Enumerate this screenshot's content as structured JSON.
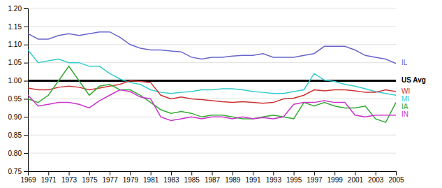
{
  "chart_data": {
    "type": "line",
    "x": [
      1969,
      1970,
      1971,
      1972,
      1973,
      1974,
      1975,
      1976,
      1977,
      1978,
      1979,
      1980,
      1981,
      1982,
      1983,
      1984,
      1985,
      1986,
      1987,
      1988,
      1989,
      1990,
      1991,
      1992,
      1993,
      1994,
      1995,
      1996,
      1997,
      1998,
      1999,
      2000,
      2001,
      2002,
      2003,
      2004,
      2005
    ],
    "xlim": [
      1969,
      2005
    ],
    "xticks": [
      1969,
      1971,
      1973,
      1975,
      1977,
      1979,
      1981,
      1983,
      1985,
      1987,
      1989,
      1991,
      1993,
      1995,
      1997,
      1999,
      2001,
      2003,
      2005
    ],
    "ylim": [
      0.75,
      1.2
    ],
    "yticks": [
      0.75,
      {
        "value": 0.8,
        "label": "0.80"
      },
      0.85,
      {
        "value": 0.9,
        "label": "0.90"
      },
      0.95,
      {
        "value": 1.0,
        "label": "1.00"
      },
      1.05,
      {
        "value": 1.1,
        "label": "1.10"
      },
      1.15,
      {
        "value": 1.2,
        "label": "1.20"
      }
    ],
    "grid": true,
    "series": [
      {
        "name": "US Avg",
        "color": "#000000",
        "type": "hline",
        "value": 1.0
      },
      {
        "name": "IL",
        "color": "#6666cc",
        "values": [
          1.13,
          1.115,
          1.115,
          1.125,
          1.13,
          1.125,
          1.13,
          1.135,
          1.135,
          1.12,
          1.1,
          1.09,
          1.085,
          1.085,
          1.082,
          1.08,
          1.065,
          1.06,
          1.065,
          1.065,
          1.068,
          1.07,
          1.07,
          1.075,
          1.065,
          1.065,
          1.065,
          1.07,
          1.075,
          1.095,
          1.095,
          1.095,
          1.085,
          1.07,
          1.065,
          1.06,
          1.048
        ]
      },
      {
        "name": "MI",
        "color": "#33cccc",
        "values": [
          1.085,
          1.05,
          1.055,
          1.06,
          1.05,
          1.05,
          1.04,
          1.04,
          1.02,
          1.005,
          0.995,
          0.99,
          0.975,
          0.968,
          0.965,
          0.968,
          0.97,
          0.975,
          0.975,
          0.978,
          0.978,
          0.975,
          0.97,
          0.968,
          0.965,
          0.965,
          0.97,
          0.975,
          1.02,
          1.002,
          0.998,
          0.99,
          0.985,
          0.978,
          0.97,
          0.965,
          0.96
        ]
      },
      {
        "name": "WI",
        "color": "#cc3333",
        "values": [
          0.98,
          0.975,
          0.975,
          0.982,
          0.985,
          0.982,
          0.975,
          0.98,
          0.985,
          0.99,
          1.0,
          0.998,
          0.995,
          0.96,
          0.95,
          0.955,
          0.95,
          0.948,
          0.945,
          0.942,
          0.94,
          0.942,
          0.94,
          0.938,
          0.94,
          0.95,
          0.952,
          0.96,
          0.975,
          0.972,
          0.975,
          0.975,
          0.972,
          0.968,
          0.968,
          0.975,
          0.97
        ]
      },
      {
        "name": "IA",
        "color": "#33aa33",
        "values": [
          0.95,
          0.94,
          0.96,
          1.0,
          1.04,
          1.0,
          0.96,
          0.985,
          0.99,
          0.975,
          0.975,
          0.96,
          0.94,
          0.92,
          0.91,
          0.915,
          0.91,
          0.9,
          0.905,
          0.905,
          0.9,
          0.895,
          0.895,
          0.9,
          0.905,
          0.9,
          0.895,
          0.94,
          0.93,
          0.94,
          0.93,
          0.925,
          0.925,
          0.93,
          0.895,
          0.885,
          0.94
        ]
      },
      {
        "name": "IN",
        "color": "#cc33cc",
        "values": [
          0.96,
          0.93,
          0.935,
          0.94,
          0.94,
          0.935,
          0.925,
          0.945,
          0.96,
          0.975,
          0.97,
          0.955,
          0.95,
          0.9,
          0.89,
          0.895,
          0.9,
          0.895,
          0.9,
          0.9,
          0.895,
          0.9,
          0.895,
          0.898,
          0.895,
          0.9,
          0.935,
          0.94,
          0.94,
          0.945,
          0.94,
          0.94,
          0.905,
          0.9,
          0.905,
          0.905,
          0.905
        ]
      }
    ]
  }
}
